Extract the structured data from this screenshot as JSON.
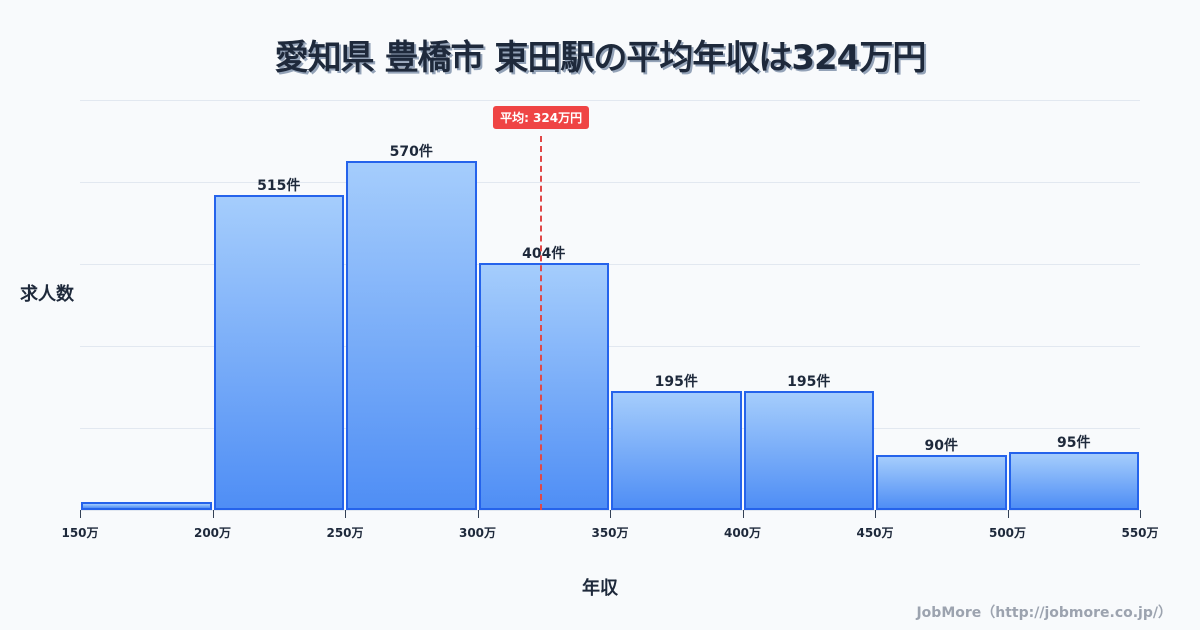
{
  "title": "愛知県 豊橋市 東田駅の平均年収は324万円",
  "ylabel": "求人数",
  "xlabel": "年収",
  "credit": "JobMore（http://jobmore.co.jp/）",
  "mean_badge": "平均: 324万円",
  "colors": {
    "bar_border": "#2563eb",
    "bar_top": "#a5cdfc",
    "bar_bottom": "#4f8ef5",
    "mean": "#ef4444"
  },
  "chart_data": {
    "type": "bar",
    "title": "愛知県 豊橋市 東田駅の平均年収は324万円",
    "xlabel": "年収",
    "ylabel": "求人数",
    "categories": [
      "150-200万",
      "200-250万",
      "250-300万",
      "300-350万",
      "350-400万",
      "400-450万",
      "450-500万",
      "500-550万"
    ],
    "values": [
      13,
      515,
      570,
      404,
      195,
      195,
      90,
      95
    ],
    "labels": [
      "",
      "515件",
      "570件",
      "404件",
      "195件",
      "195件",
      "90件",
      "95件"
    ],
    "x_ticks": [
      "150万",
      "200万",
      "250万",
      "300万",
      "350万",
      "400万",
      "450万",
      "500万",
      "550万"
    ],
    "x_range": [
      150,
      550
    ],
    "ylim": [
      0,
      670
    ],
    "mean": 324,
    "mean_label": "平均: 324万円",
    "grid": true
  }
}
